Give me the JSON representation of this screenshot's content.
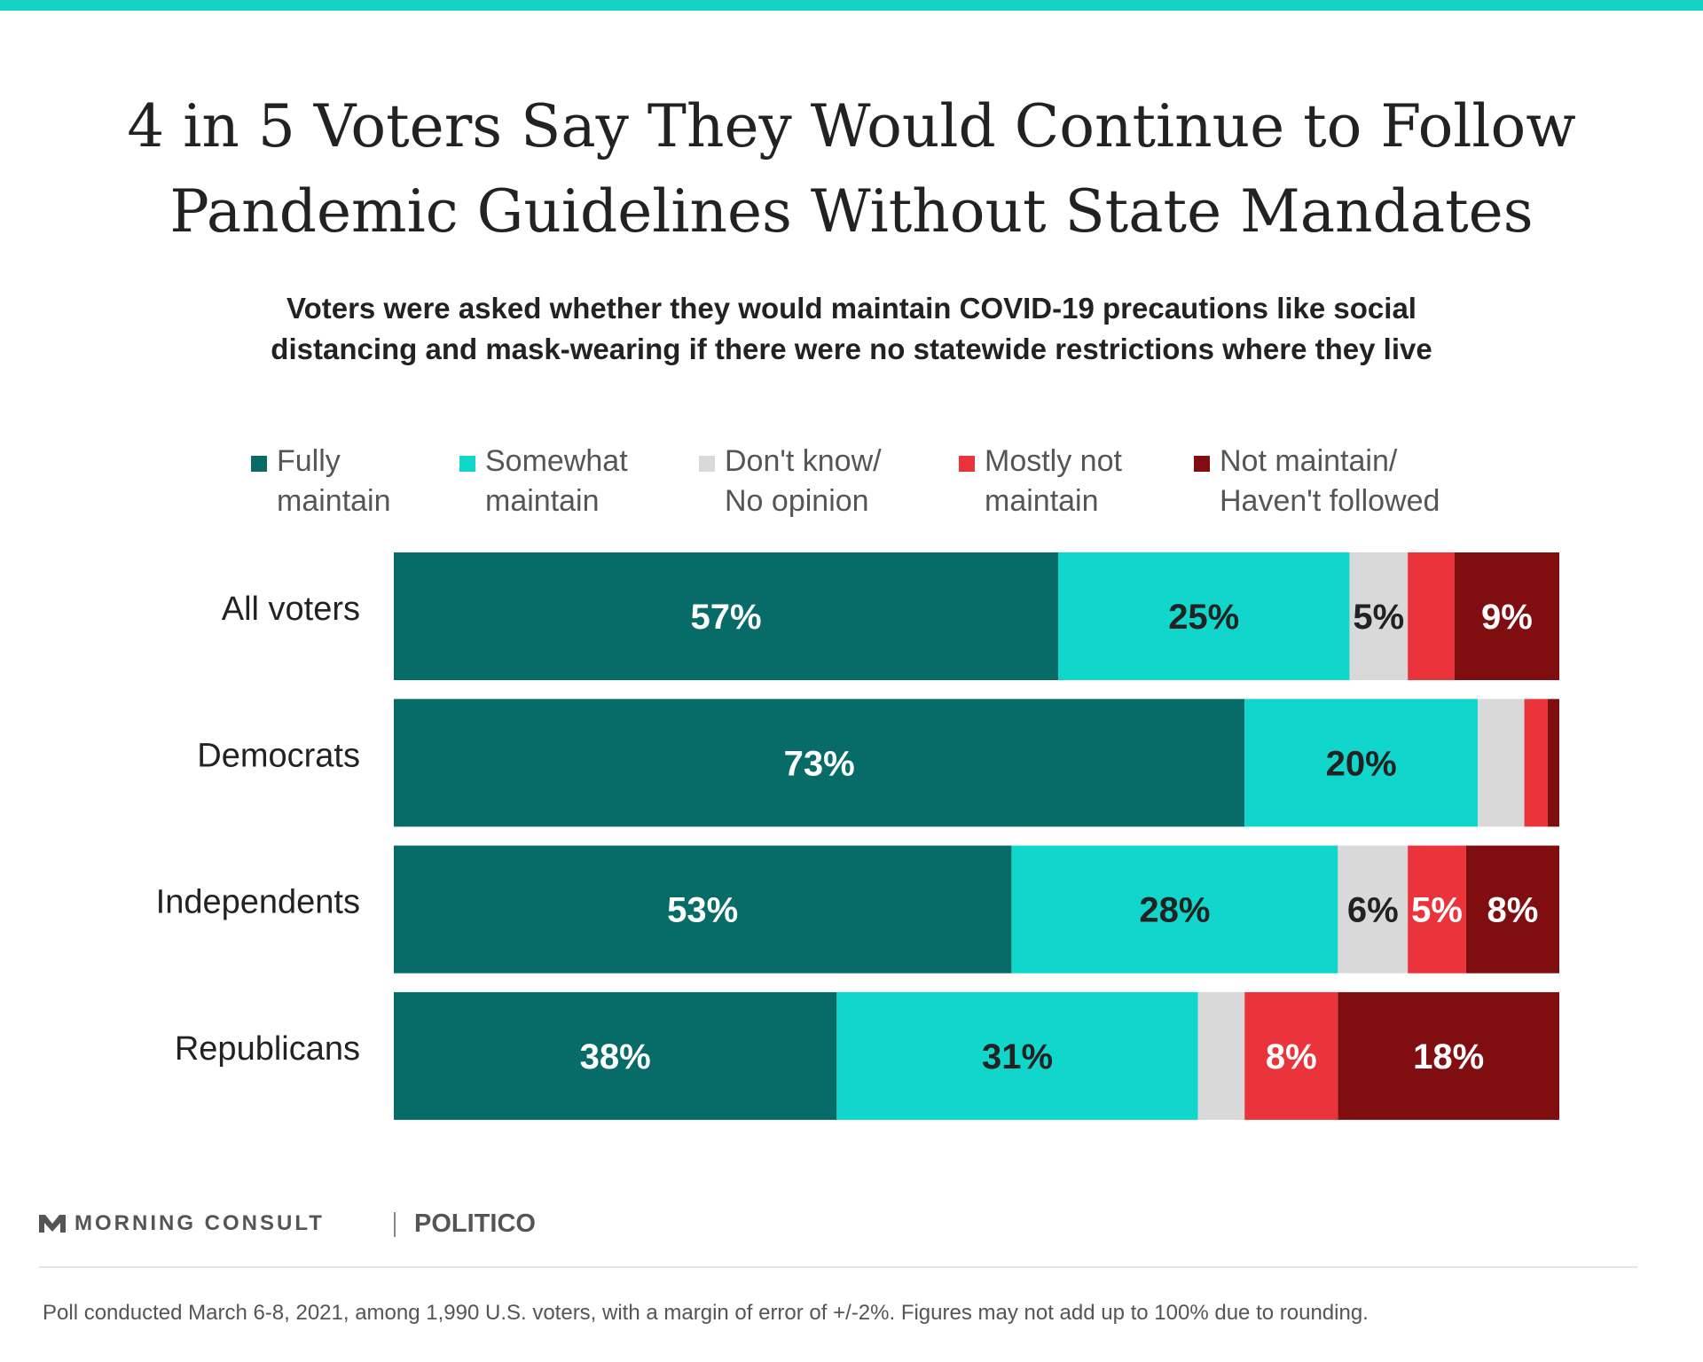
{
  "header": {
    "title_lines": [
      "4 in 5 Voters Say They Would Continue to Follow",
      "Pandemic Guidelines Without State Mandates"
    ],
    "subtitle_lines": [
      "Voters were asked whether they would maintain COVID-19 precautions like social",
      "distancing and mask-wearing if there were no statewide restrictions where they live"
    ]
  },
  "legend": [
    {
      "lines": [
        "Fully",
        "maintain"
      ],
      "color": "#076b67"
    },
    {
      "lines": [
        "Somewhat",
        "maintain"
      ],
      "color": "#11d6cb"
    },
    {
      "lines": [
        "Don't know/",
        "No opinion"
      ],
      "color": "#d9d9d9"
    },
    {
      "lines": [
        "Mostly not",
        "maintain"
      ],
      "color": "#ea333b"
    },
    {
      "lines": [
        "Not maintain/",
        "Haven't followed"
      ],
      "color": "#800e11"
    }
  ],
  "chart_data": {
    "type": "bar",
    "orientation": "horizontal",
    "stacked": true,
    "categories": [
      "All voters",
      "Democrats",
      "Independents",
      "Republicans"
    ],
    "xlim": [
      0,
      100
    ],
    "grid": false,
    "legend_position": "top",
    "series": [
      {
        "name": "Fully maintain",
        "color": "#076b67",
        "label_color": "#ffffff",
        "values": [
          57,
          73,
          53,
          38
        ],
        "labels": [
          "57%",
          "73%",
          "53%",
          "38%"
        ]
      },
      {
        "name": "Somewhat maintain",
        "color": "#11d6cb",
        "label_color": "#222222",
        "values": [
          25,
          20,
          28,
          31
        ],
        "labels": [
          "25%",
          "20%",
          "28%",
          "31%"
        ]
      },
      {
        "name": "Don't know/ No opinion",
        "color": "#d9d9d9",
        "label_color": "#222222",
        "values": [
          5,
          4,
          6,
          4
        ],
        "labels": [
          "5%",
          "",
          "6%",
          ""
        ]
      },
      {
        "name": "Mostly not maintain",
        "color": "#ea333b",
        "label_color": "#ffffff",
        "values": [
          4,
          2,
          5,
          8
        ],
        "labels": [
          "",
          "",
          "5%",
          "8%"
        ]
      },
      {
        "name": "Not maintain/ Haven't followed",
        "color": "#800e11",
        "label_color": "#ffffff",
        "values": [
          9,
          1,
          8,
          18
        ],
        "labels": [
          "9%",
          "",
          "8%",
          "18%"
        ]
      }
    ]
  },
  "footer": {
    "brand": "MORNING CONSULT",
    "partner": "POLITICO",
    "note": "Poll conducted March 6-8, 2021, among 1,990 U.S. voters, with a margin of error of +/-2%. Figures may not add up to 100% due to rounding."
  }
}
